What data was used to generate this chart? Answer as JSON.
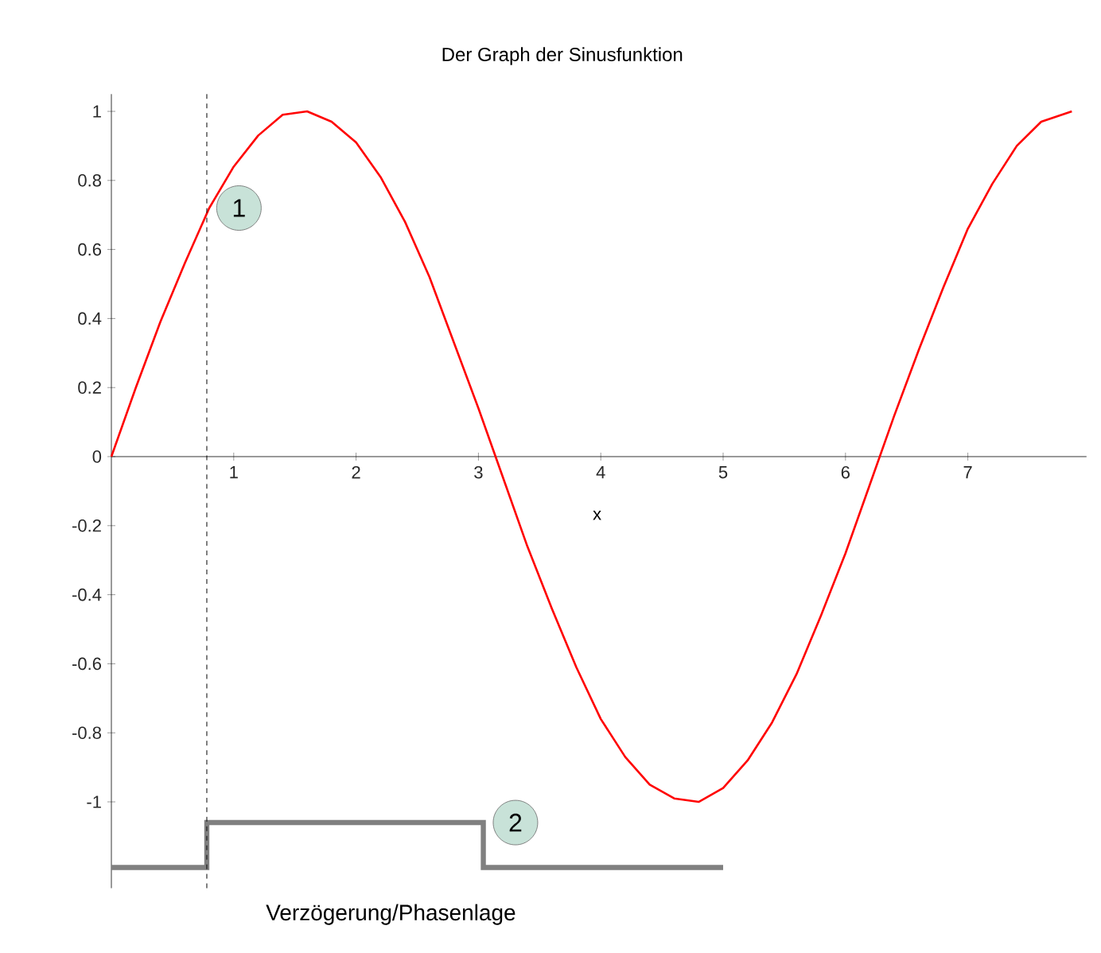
{
  "chart_data": {
    "type": "line",
    "title": "Der Graph der Sinusfunktion",
    "xlabel": "x",
    "xlim": [
      0,
      7.97
    ],
    "ylim": [
      -1.25,
      1.05
    ],
    "xticks": [
      1,
      2,
      3,
      4,
      5,
      6,
      7
    ],
    "yticks": [
      -1,
      -0.8,
      -0.6,
      -0.4,
      -0.2,
      0,
      0.2,
      0.4,
      0.6,
      0.8,
      1
    ],
    "grid": false,
    "x": [
      0,
      0.2,
      0.4,
      0.6,
      0.8,
      1.0,
      1.2,
      1.4,
      1.6,
      1.8,
      2.0,
      2.2,
      2.4,
      2.6,
      2.8,
      3.0,
      3.2,
      3.4,
      3.6,
      3.8,
      4.0,
      4.2,
      4.4,
      4.6,
      4.8,
      5.0,
      5.2,
      5.4,
      5.6,
      5.8,
      6.0,
      6.2,
      6.4,
      6.6,
      6.8,
      7.0,
      7.2,
      7.4,
      7.6,
      7.85
    ],
    "series": [
      {
        "color": "#ff0000",
        "values": [
          0,
          0.2,
          0.39,
          0.56,
          0.72,
          0.84,
          0.93,
          0.99,
          1.0,
          0.97,
          0.91,
          0.81,
          0.68,
          0.52,
          0.33,
          0.14,
          -0.06,
          -0.26,
          -0.44,
          -0.61,
          -0.76,
          -0.87,
          -0.95,
          -0.99,
          -1.0,
          -0.96,
          -0.88,
          -0.77,
          -0.63,
          -0.46,
          -0.28,
          -0.08,
          0.12,
          0.31,
          0.49,
          0.66,
          0.79,
          0.9,
          0.97,
          1.0
        ]
      },
      {
        "type": "step",
        "color": "#808080",
        "x": [
          0,
          0.78,
          3.04,
          5.0
        ],
        "values": [
          -1.19,
          -1.06,
          -1.19,
          -1.19
        ]
      }
    ],
    "ref_lines": [
      {
        "axis": "x",
        "value": 0.78,
        "color": "#000000",
        "line_style": "dashed"
      }
    ],
    "annotations": [
      {
        "text": "1",
        "x": 0.78,
        "y": 0.72
      },
      {
        "text": "2",
        "x": 3.04,
        "y": -1.06
      },
      "Verzögerung/Phasenlage"
    ]
  }
}
